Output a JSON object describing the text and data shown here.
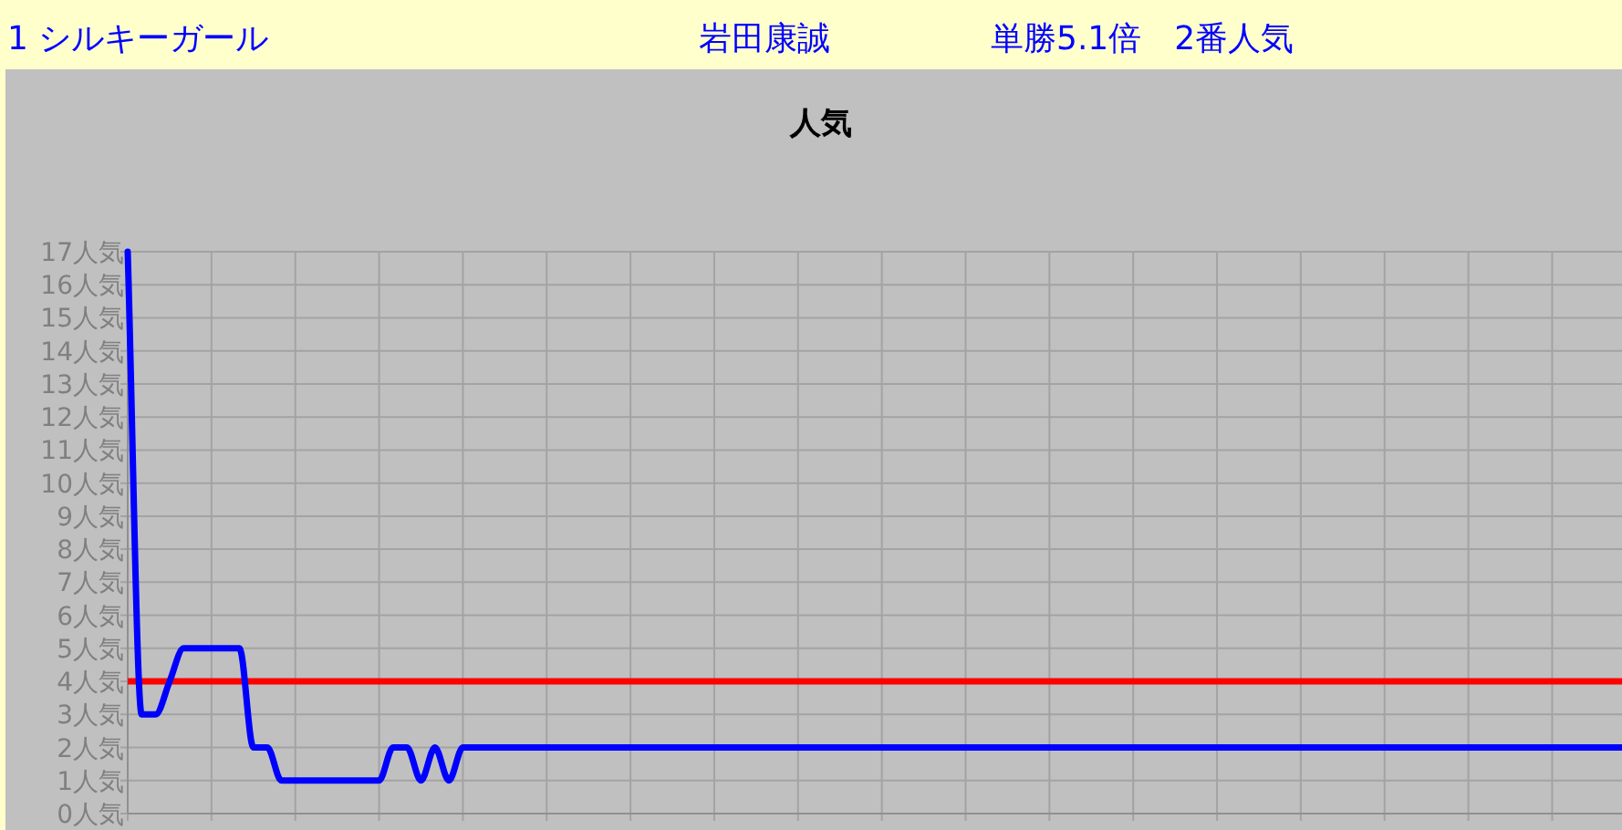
{
  "chart_data": {
    "type": "line",
    "title": "人気",
    "annotations": [
      "1 シルキーガール",
      "岩田康誠",
      "単勝5.1倍　2番人気"
    ],
    "categories": [
      null,
      null,
      null,
      null,
      null,
      null,
      null,
      null,
      null,
      null,
      null,
      null,
      null,
      null,
      null,
      null,
      null,
      null,
      null,
      null,
      null,
      null,
      null,
      null,
      null,
      null,
      null,
      null,
      null,
      null,
      null,
      null,
      null,
      null,
      null,
      null,
      null,
      null,
      null,
      null,
      null,
      null,
      null,
      null,
      null,
      null,
      null,
      null,
      null,
      null,
      null,
      null,
      null,
      null,
      null,
      null,
      null,
      null,
      null,
      null,
      null,
      null,
      null,
      null,
      null,
      null,
      null,
      null,
      null,
      null,
      null,
      null,
      null,
      null,
      null,
      null,
      null,
      null,
      null,
      null,
      null,
      null,
      null,
      null,
      null,
      null,
      null,
      null,
      null,
      null,
      null,
      null,
      null,
      null,
      null,
      null,
      null,
      null,
      null,
      null,
      null,
      null,
      null,
      null,
      null,
      null,
      null,
      null
    ],
    "series": [
      {
        "color": "#0000ff",
        "values": [
          17,
          3,
          3,
          4,
          5,
          5,
          5,
          5,
          5,
          2,
          2,
          1,
          1,
          1,
          1,
          1,
          1,
          1,
          1,
          2,
          2,
          1,
          2,
          1,
          2,
          2,
          2,
          2,
          2,
          2,
          2,
          2,
          2,
          2,
          2,
          2,
          2,
          2,
          2,
          2,
          2,
          2,
          2,
          2,
          2,
          2,
          2,
          2,
          2,
          2,
          2,
          2,
          2,
          2,
          2,
          2,
          2,
          2,
          2,
          2,
          2,
          2,
          2,
          2,
          2,
          2,
          2,
          2,
          2,
          2,
          2,
          2,
          2,
          2,
          2,
          2,
          2,
          2,
          2,
          2,
          2,
          2,
          2,
          2,
          2,
          2,
          2,
          2,
          2,
          2,
          2,
          2,
          2,
          2,
          2,
          2,
          2,
          2,
          2,
          2,
          2,
          2,
          2,
          2,
          2,
          2,
          2,
          2
        ]
      }
    ],
    "ylim": [
      0,
      17
    ],
    "yticks": [
      {
        "value": 0,
        "label": "0人気"
      },
      {
        "value": 1,
        "label": "1人気"
      },
      {
        "value": 2,
        "label": "2人気"
      },
      {
        "value": 3,
        "label": "3人気"
      },
      {
        "value": 4,
        "label": "4人気"
      },
      {
        "value": 5,
        "label": "5人気"
      },
      {
        "value": 6,
        "label": "6人気"
      },
      {
        "value": 7,
        "label": "7人気"
      },
      {
        "value": 8,
        "label": "8人気"
      },
      {
        "value": 9,
        "label": "9人気"
      },
      {
        "value": 10,
        "label": "10人気"
      },
      {
        "value": 11,
        "label": "11人気"
      },
      {
        "value": 12,
        "label": "12人気"
      },
      {
        "value": 13,
        "label": "13人気"
      },
      {
        "value": 14,
        "label": "14人気"
      },
      {
        "value": 15,
        "label": "15人気"
      },
      {
        "value": 16,
        "label": "16人気"
      },
      {
        "value": 17,
        "label": "17人気"
      }
    ],
    "grid": true,
    "tick_labels": "y",
    "marker": "none",
    "ref_lines": [
      {
        "axis": "y",
        "value": 4,
        "color": "#ff0000"
      }
    ]
  }
}
